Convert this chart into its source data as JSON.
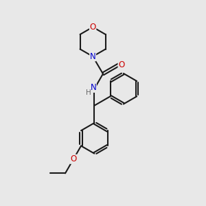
{
  "bg_color": "#e8e8e8",
  "bond_color": "#1a1a1a",
  "N_color": "#0000cc",
  "O_color": "#cc0000",
  "H_color": "#666666",
  "line_width": 1.5,
  "figsize": [
    3.0,
    3.0
  ],
  "dpi": 100,
  "xlim": [
    0,
    10
  ],
  "ylim": [
    0,
    10
  ]
}
